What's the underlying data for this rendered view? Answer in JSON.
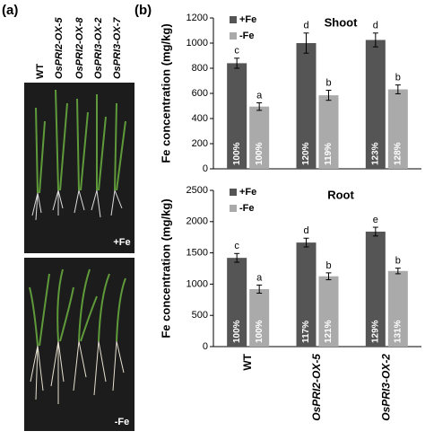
{
  "panel_labels": [
    "(a)",
    "(b)"
  ],
  "photo_panel": {
    "lines": [
      "WT",
      "OsPRI2-OX-5",
      "OsPRI2-OX-8",
      "OsPRI3-OX-2",
      "OsPRI3-OX-7"
    ],
    "conditions": [
      "+Fe",
      "-Fe"
    ]
  },
  "chart_data": [
    {
      "type": "bar",
      "title": "Shoot",
      "y_label": "Fe concentration (mg/kg)",
      "categories": [
        null,
        null,
        null
      ],
      "ylim": [
        0,
        1200
      ],
      "yticks": [
        0,
        200,
        400,
        600,
        800,
        1000,
        1200
      ],
      "series": [
        {
          "name": "+Fe",
          "color": "#555555",
          "values": [
            840,
            1000,
            1025
          ],
          "errors": [
            40,
            80,
            55
          ],
          "letters": [
            "c",
            "d",
            "d"
          ],
          "percents": [
            "100%",
            "120%",
            "123%"
          ]
        },
        {
          "name": "-Fe",
          "color": "#aaaaaa",
          "values": [
            495,
            585,
            632
          ],
          "errors": [
            30,
            40,
            35
          ],
          "letters": [
            "a",
            "b",
            "b"
          ],
          "percents": [
            "100%",
            "119%",
            "128%"
          ]
        }
      ]
    },
    {
      "type": "bar",
      "title": "Root",
      "y_label": "Fe concentration (mg/kg)",
      "categories": [
        "WT",
        "OsPRI2-OX-5",
        "OsPRI3-OX-2"
      ],
      "ylim": [
        0,
        2500
      ],
      "yticks": [
        0,
        500,
        1000,
        1500,
        2000,
        2500
      ],
      "series": [
        {
          "name": "+Fe",
          "color": "#555555",
          "values": [
            1420,
            1665,
            1840
          ],
          "errors": [
            70,
            70,
            70
          ],
          "letters": [
            "c",
            "d",
            "e"
          ],
          "percents": [
            "100%",
            "117%",
            "129%"
          ]
        },
        {
          "name": "-Fe",
          "color": "#aaaaaa",
          "values": [
            920,
            1125,
            1210
          ],
          "errors": [
            65,
            55,
            45
          ],
          "letters": [
            "a",
            "b",
            "b"
          ],
          "percents": [
            "100%",
            "121%",
            "131%"
          ]
        }
      ]
    }
  ]
}
